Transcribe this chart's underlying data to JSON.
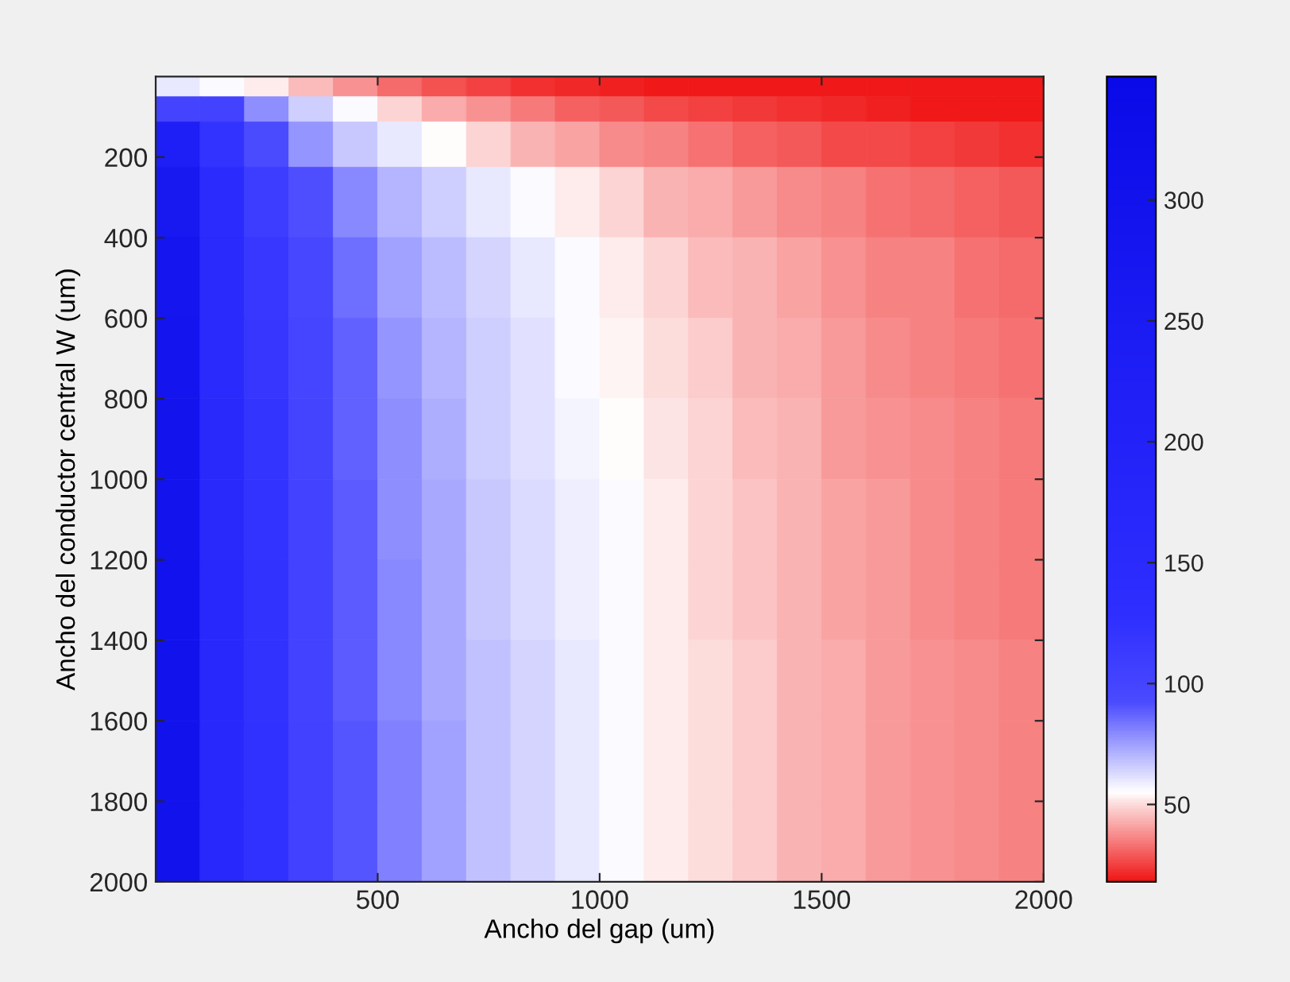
{
  "chart_data": {
    "type": "heatmap",
    "xlabel": "Ancho del gap (um)",
    "ylabel": "Ancho del conductor central W (um)",
    "x": [
      50,
      150,
      250,
      350,
      450,
      550,
      650,
      750,
      850,
      950,
      1050,
      1150,
      1250,
      1350,
      1450,
      1550,
      1650,
      1750,
      1850,
      1950
    ],
    "y": [
      25,
      75,
      150,
      300,
      500,
      700,
      900,
      1100,
      1300,
      1500,
      1700,
      1900
    ],
    "cells": [
      [
        60,
        56,
        52,
        45,
        38,
        32,
        28,
        25,
        23,
        21,
        20,
        19,
        19,
        18,
        18,
        18,
        18,
        18,
        18,
        18
      ],
      [
        100,
        103,
        78,
        65,
        56,
        49,
        42,
        38,
        34,
        31,
        29,
        27,
        25,
        24,
        22,
        21,
        20,
        19,
        18,
        18
      ],
      [
        225,
        123,
        93,
        77,
        67,
        60,
        55,
        49,
        44,
        41,
        37,
        35,
        33,
        31,
        29,
        27,
        26,
        25,
        24,
        23
      ],
      [
        266,
        146,
        110,
        91,
        80,
        71,
        65,
        60,
        56,
        52,
        48,
        44,
        42,
        39,
        37,
        35,
        33,
        32,
        30,
        29
      ],
      [
        283,
        154,
        117,
        97,
        85,
        75,
        69,
        64,
        60,
        56,
        52,
        48,
        45,
        43,
        41,
        38,
        36,
        35,
        33,
        32
      ],
      [
        289,
        157,
        119,
        99,
        87,
        77,
        71,
        65,
        61,
        57,
        54,
        50,
        47,
        44,
        42,
        39,
        37,
        36,
        34,
        33
      ],
      [
        294,
        160,
        121,
        101,
        88,
        78,
        72,
        66,
        62,
        58,
        55,
        51,
        48,
        45,
        43,
        40,
        38,
        37,
        35,
        34
      ],
      [
        297,
        162,
        123,
        102,
        89,
        79,
        73,
        67,
        63,
        59,
        56,
        52,
        49,
        46,
        43,
        41,
        39,
        37,
        36,
        34
      ],
      [
        299,
        163,
        124,
        103,
        89,
        80,
        73,
        67,
        63,
        59,
        56,
        52,
        49,
        46,
        43,
        41,
        39,
        37,
        36,
        34
      ],
      [
        301,
        164,
        124,
        103,
        89,
        80,
        73,
        68,
        64,
        60,
        57,
        53,
        50,
        47,
        44,
        42,
        40,
        38,
        37,
        35
      ],
      [
        302,
        165,
        125,
        104,
        90,
        81,
        74,
        68,
        64,
        60,
        57,
        53,
        50,
        47,
        44,
        42,
        40,
        38,
        37,
        35
      ],
      [
        303,
        165,
        125,
        104,
        90,
        81,
        74,
        68,
        64,
        60,
        57,
        53,
        50,
        47,
        44,
        42,
        40,
        38,
        37,
        35
      ]
    ],
    "colors": [
      "#f01818",
      "#ffffff",
      "#4a4aff",
      "#2e2eff",
      "#2828fc",
      "#2222f8",
      "#1c1cf4",
      "#1616f0",
      "#1010ec",
      "#0a0ae8"
    ],
    "xlim": [
      0,
      2000
    ],
    "ylim": [
      2000,
      0
    ],
    "xticks": [
      500,
      1000,
      1500,
      2000
    ],
    "yticks": [
      200,
      400,
      600,
      800,
      1000,
      1200,
      1400,
      1600,
      1800,
      2000
    ],
    "clim": [
      18,
      351
    ],
    "cticks": [
      50,
      100,
      150,
      200,
      250,
      300
    ]
  }
}
